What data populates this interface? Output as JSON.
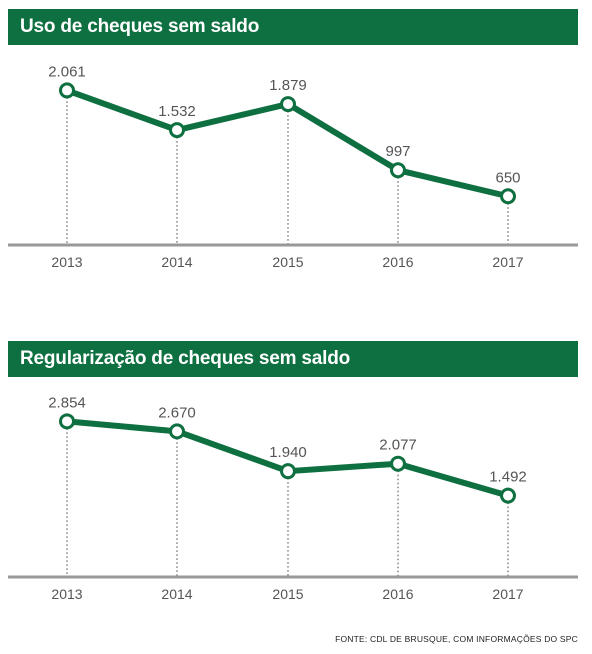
{
  "chart_data": [
    {
      "type": "line",
      "title": "Uso de cheques sem saldo",
      "categories": [
        "2013",
        "2014",
        "2015",
        "2016",
        "2017"
      ],
      "values": [
        2061,
        1532,
        1879,
        997,
        650
      ],
      "value_labels": [
        "2.061",
        "1.532",
        "1.879",
        "997",
        "650"
      ],
      "ylim": [
        0,
        2400
      ]
    },
    {
      "type": "line",
      "title": "Regularização de cheques sem saldo",
      "categories": [
        "2013",
        "2014",
        "2015",
        "2016",
        "2017"
      ],
      "values": [
        2854,
        2670,
        1940,
        2077,
        1492
      ],
      "value_labels": [
        "2.854",
        "2.670",
        "1.940",
        "2.077",
        "1.492"
      ],
      "ylim": [
        0,
        3300
      ]
    }
  ],
  "colors": {
    "accent": "#0e7040",
    "axis": "#999999",
    "text": "#555555"
  },
  "source": "FONTE: CDL DE BRUSQUE, COM INFORMAÇÕES DO SPC"
}
